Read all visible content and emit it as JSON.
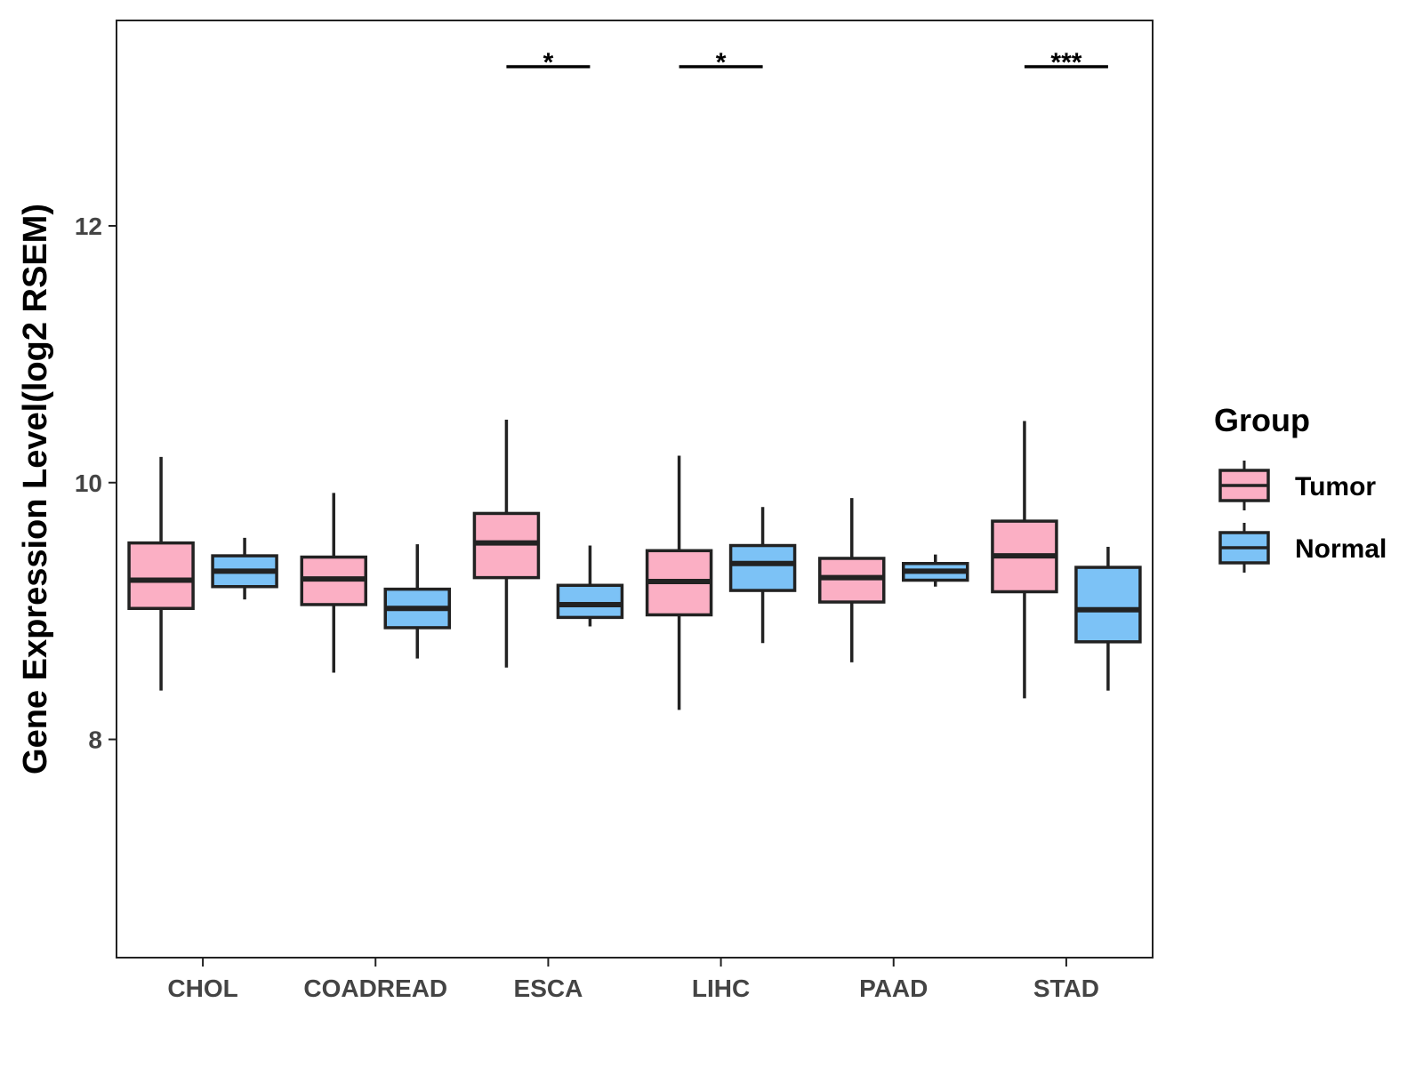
{
  "chart_data": {
    "type": "boxplot",
    "ylabel": "Gene Expression Level(log2 RSEM)",
    "xlabel": "",
    "ylim": [
      6.3,
      13.6
    ],
    "yticks": [
      8,
      10,
      12
    ],
    "categories": [
      "CHOL",
      "COADREAD",
      "ESCA",
      "LIHC",
      "PAAD",
      "STAD"
    ],
    "series": [
      {
        "name": "Tumor",
        "color": "#FBAFC4",
        "boxes": [
          {
            "min": 8.38,
            "q1": 9.02,
            "median": 9.24,
            "q3": 9.53,
            "max": 10.2
          },
          {
            "min": 8.52,
            "q1": 9.05,
            "median": 9.25,
            "q3": 9.42,
            "max": 9.92
          },
          {
            "min": 8.56,
            "q1": 9.26,
            "median": 9.53,
            "q3": 9.76,
            "max": 10.49
          },
          {
            "min": 8.23,
            "q1": 8.97,
            "median": 9.23,
            "q3": 9.47,
            "max": 10.21
          },
          {
            "min": 8.6,
            "q1": 9.07,
            "median": 9.26,
            "q3": 9.41,
            "max": 9.88
          },
          {
            "min": 8.32,
            "q1": 9.15,
            "median": 9.43,
            "q3": 9.7,
            "max": 10.48
          }
        ]
      },
      {
        "name": "Normal",
        "color": "#7CC2F6",
        "boxes": [
          {
            "min": 9.09,
            "q1": 9.19,
            "median": 9.31,
            "q3": 9.43,
            "max": 9.57
          },
          {
            "min": 8.63,
            "q1": 8.87,
            "median": 9.02,
            "q3": 9.17,
            "max": 9.52
          },
          {
            "min": 8.88,
            "q1": 8.95,
            "median": 9.05,
            "q3": 9.2,
            "max": 9.51
          },
          {
            "min": 8.75,
            "q1": 9.16,
            "median": 9.37,
            "q3": 9.51,
            "max": 9.81
          },
          {
            "min": 9.19,
            "q1": 9.24,
            "median": 9.31,
            "q3": 9.37,
            "max": 9.44
          },
          {
            "min": 8.38,
            "q1": 8.76,
            "median": 9.01,
            "q3": 9.34,
            "max": 9.5
          }
        ]
      }
    ],
    "significance": [
      {
        "category": "ESCA",
        "label": "*"
      },
      {
        "category": "LIHC",
        "label": "*"
      },
      {
        "category": "STAD",
        "label": "***"
      }
    ],
    "legend": {
      "title": "Group",
      "position": "right",
      "entries": [
        "Tumor",
        "Normal"
      ]
    }
  }
}
